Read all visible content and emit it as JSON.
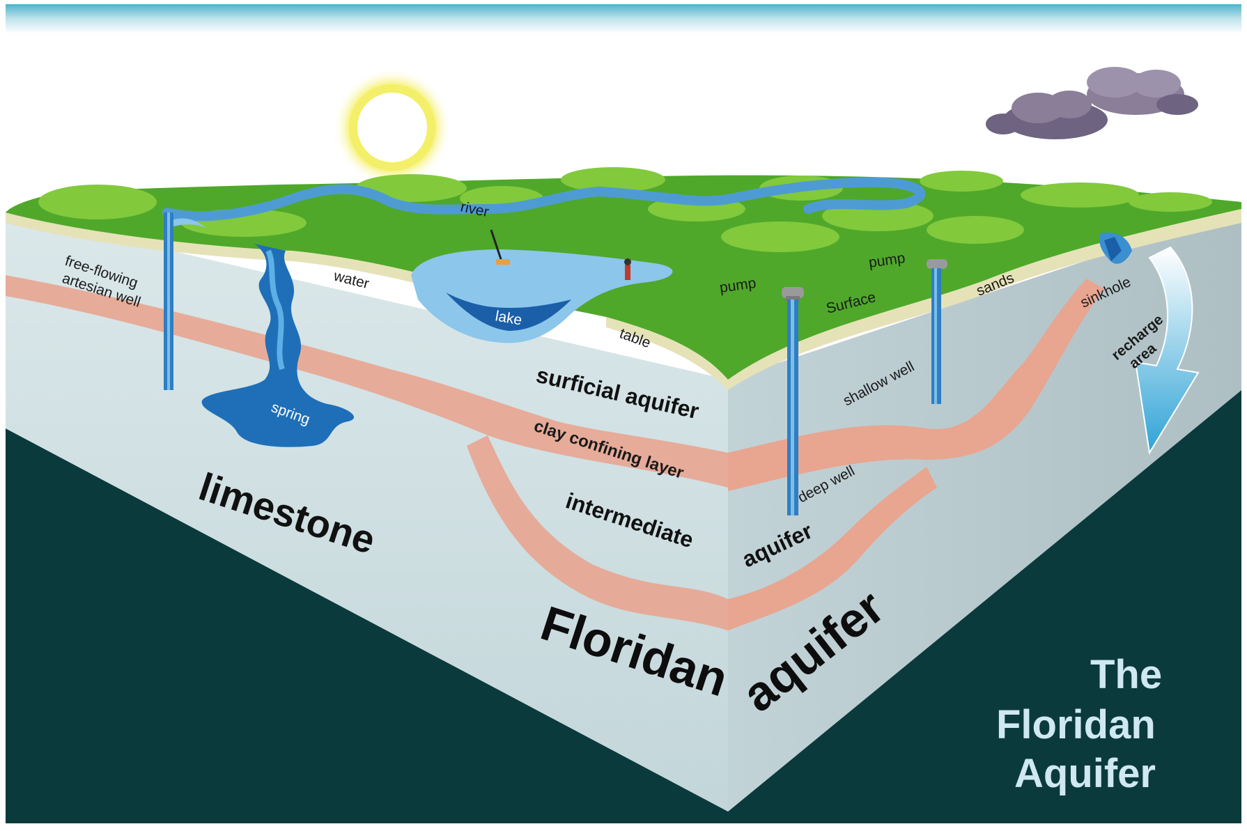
{
  "colors": {
    "sky_top": "#5bb8cf",
    "ground_green": "#4fa82a",
    "canopy_green": "#7fc63a",
    "water_blue": "#3a8fd0",
    "lake_deep": "#1a5fa8",
    "limestone": "#c9dce0",
    "limestone_dark": "#a9bec4",
    "clay_layer": "#e8a590",
    "surface_sand": "#e6e2b8",
    "backdrop": "#0b3a3c",
    "title_text": "#cfe8f2",
    "sun": "#f4f070",
    "cloud": "#7a6e8a"
  },
  "icons": [
    "sun-icon",
    "rain-cloud-icon",
    "pump-icon",
    "sinkhole-icon",
    "recharge-arrow-icon"
  ],
  "labels": {
    "artesian_well": [
      "free-flowing",
      "artesian well"
    ],
    "river": "river",
    "water": "water",
    "table": "table",
    "lake": "lake",
    "spring": "spring",
    "pump_left": "pump",
    "pump_right": "pump",
    "surface": "Surface",
    "sands": "sands",
    "sinkhole": "sinkhole",
    "recharge_area": [
      "recharge",
      "area"
    ],
    "surficial_aquifer": "surficial aquifer",
    "clay_confining_layer": "clay confining layer",
    "intermediate": "intermediate",
    "aquifer_mid": "aquifer",
    "shallow_well": "shallow well",
    "deep_well": "deep well",
    "limestone": "limestone",
    "floridan": "Floridan",
    "aquifer_big": "aquifer"
  },
  "title": {
    "line1": "The",
    "line2": "Floridan",
    "line3": "Aquifer"
  }
}
